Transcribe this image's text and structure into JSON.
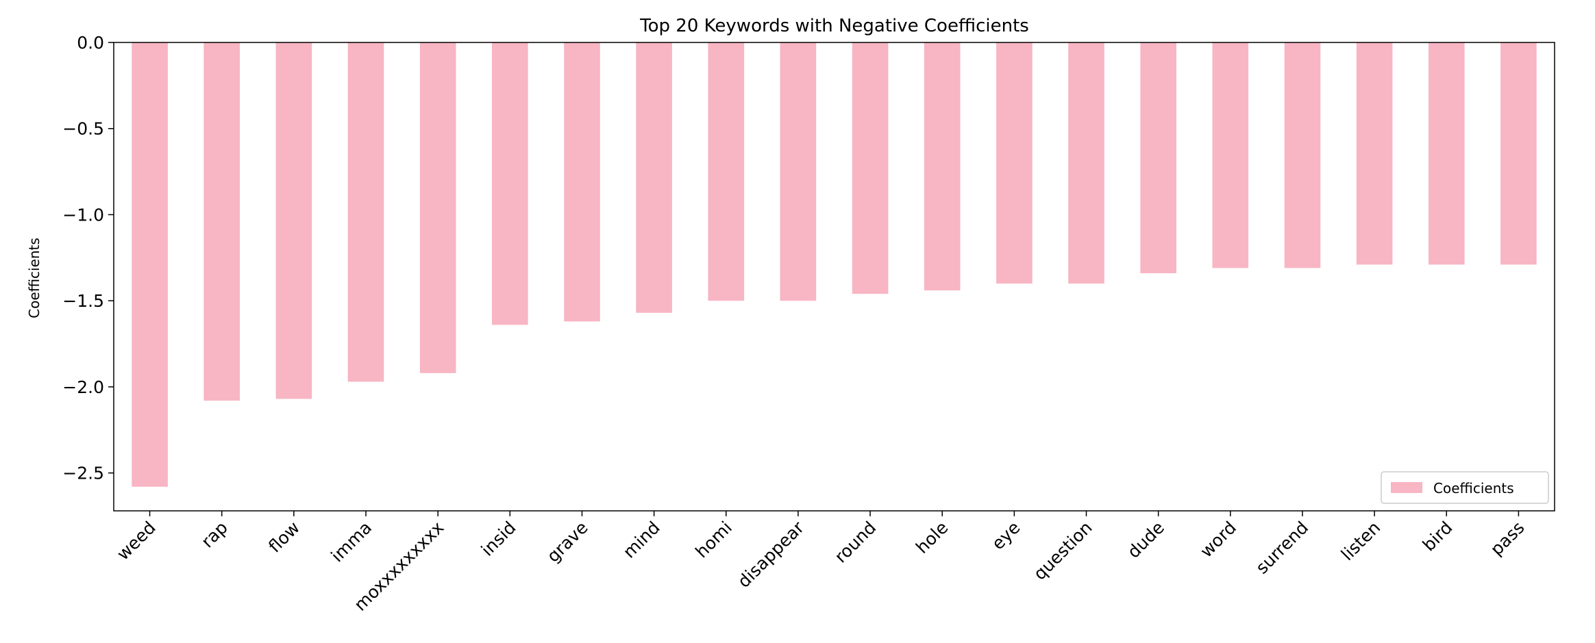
{
  "chart_data": {
    "type": "bar",
    "title": "Top 20 Keywords with Negative Coefficients",
    "xlabel": "",
    "ylabel": "Coefficients",
    "categories": [
      "weed",
      "rap",
      "flow",
      "imma",
      "moxxxxxxxxx",
      "insid",
      "grave",
      "mind",
      "homi",
      "disappear",
      "round",
      "hole",
      "eye",
      "question",
      "dude",
      "word",
      "surrend",
      "listen",
      "bird",
      "pass"
    ],
    "series": [
      {
        "name": "Coefficients",
        "color": "#f8b5c3",
        "values": [
          -2.58,
          -2.08,
          -2.07,
          -1.97,
          -1.92,
          -1.64,
          -1.62,
          -1.57,
          -1.5,
          -1.5,
          -1.46,
          -1.44,
          -1.4,
          -1.4,
          -1.34,
          -1.31,
          -1.31,
          -1.29,
          -1.29,
          -1.29
        ]
      }
    ],
    "ylim": [
      -2.72,
      0.0
    ],
    "yticks": [
      0.0,
      -0.5,
      -1.0,
      -1.5,
      -2.0,
      -2.5
    ],
    "ytick_labels": [
      "0.0",
      "−0.5",
      "−1.0",
      "−1.5",
      "−2.0",
      "−2.5"
    ],
    "grid": false,
    "legend_position": "lower-right"
  }
}
